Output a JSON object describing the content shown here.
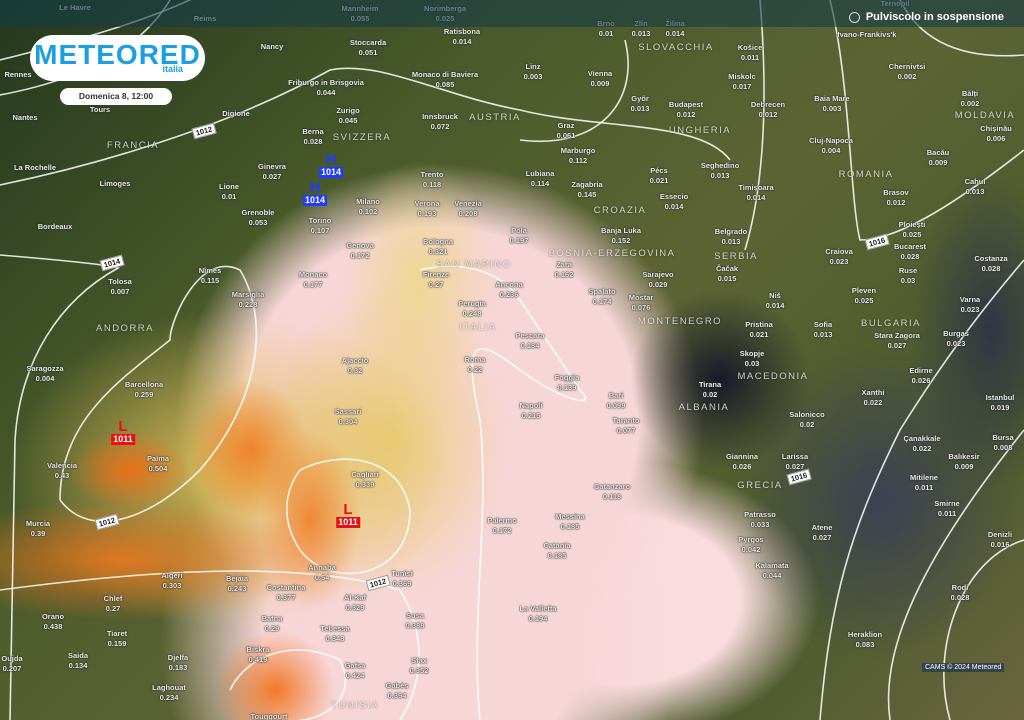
{
  "header": {
    "layer_title": "Pulviscolo in sospensione",
    "layer_icon": "dust-icon"
  },
  "brand": {
    "name": "METEORED",
    "sub": "italia"
  },
  "date_label": "Domenica 8, 12:00",
  "credit": "CAMS © 2024 Meteored",
  "colors": {
    "brand": "#1a9fe0",
    "high": "#1f3cff",
    "low": "#e81010",
    "dust_high": "#f07c1e",
    "dust_mid": "#e8cf78",
    "dust_low": "#f7d6d8"
  },
  "pressure_centers": [
    {
      "type": "H",
      "value": "1014"
    },
    {
      "type": "H",
      "value": "1014"
    },
    {
      "type": "L",
      "value": "1011"
    },
    {
      "type": "L",
      "value": "1011"
    }
  ],
  "isobar_labels": [
    "1012",
    "1014",
    "1012",
    "1012",
    "1016",
    "1016"
  ],
  "countries": [
    "FRANCIA",
    "SVIZZERA",
    "AUSTRIA",
    "SLOVACCHIA",
    "UNGHERIA",
    "ROMANIA",
    "MOLDAVIA",
    "CROAZIA",
    "BOSNIA-ERZEGOVINA",
    "SERBIA",
    "MONTENEGRO",
    "BULGARIA",
    "MACEDONIA",
    "ALBANIA",
    "GRECIA",
    "ITALIA",
    "SAN MARINO",
    "ANDORRA",
    "TUNISIA"
  ],
  "cities": [
    {
      "n": "Le Havre",
      "v": ""
    },
    {
      "n": "Reims",
      "v": ""
    },
    {
      "n": "Mannheim",
      "v": "0.055"
    },
    {
      "n": "Norimberga",
      "v": "0.025"
    },
    {
      "n": "Brno",
      "v": "0.01"
    },
    {
      "n": "Zlín",
      "v": "0.013"
    },
    {
      "n": "Žilina",
      "v": "0.014"
    },
    {
      "n": "Ternopil",
      "v": ""
    },
    {
      "n": "Stoccarda",
      "v": "0.051"
    },
    {
      "n": "Ratisbona",
      "v": "0.014"
    },
    {
      "n": "Nancy",
      "v": ""
    },
    {
      "n": "Rennes",
      "v": ""
    },
    {
      "n": "Friburgo in Brisgovia",
      "v": "0.044"
    },
    {
      "n": "Monaco di Baviera",
      "v": "0.085"
    },
    {
      "n": "Linz",
      "v": "0.003"
    },
    {
      "n": "Vienna",
      "v": "0.009"
    },
    {
      "n": "Košice",
      "v": "0.011"
    },
    {
      "n": "Ivano-Frankivs'k",
      "v": ""
    },
    {
      "n": "Chernivtsi",
      "v": "0.002"
    },
    {
      "n": "Tours",
      "v": ""
    },
    {
      "n": "Nantes",
      "v": ""
    },
    {
      "n": "Digione",
      "v": ""
    },
    {
      "n": "Zurigo",
      "v": "0.045"
    },
    {
      "n": "Innsbruck",
      "v": "0.072"
    },
    {
      "n": "Miskolc",
      "v": "0.017"
    },
    {
      "n": "Győr",
      "v": "0.013"
    },
    {
      "n": "Budapest",
      "v": "0.012"
    },
    {
      "n": "Debrecen",
      "v": "0.012"
    },
    {
      "n": "Baia Mare",
      "v": "0.003"
    },
    {
      "n": "Bălți",
      "v": "0.002"
    },
    {
      "n": "Chișinău",
      "v": "0.006"
    },
    {
      "n": "Berna",
      "v": "0.028"
    },
    {
      "n": "Graz",
      "v": "0.061"
    },
    {
      "n": "Marburgo",
      "v": "0.112"
    },
    {
      "n": "Cluj-Napoca",
      "v": "0.004"
    },
    {
      "n": "Bacău",
      "v": "0.009"
    },
    {
      "n": "La Rochelle",
      "v": ""
    },
    {
      "n": "Ginevra",
      "v": "0.027"
    },
    {
      "n": "Lione",
      "v": "0.01"
    },
    {
      "n": "Limoges",
      "v": ""
    },
    {
      "n": "Trento",
      "v": "0.118"
    },
    {
      "n": "Lubiana",
      "v": "0.114"
    },
    {
      "n": "Zagabria",
      "v": "0.145"
    },
    {
      "n": "Pécs",
      "v": "0.021"
    },
    {
      "n": "Seghedino",
      "v": "0.013"
    },
    {
      "n": "Timișoara",
      "v": "0.014"
    },
    {
      "n": "Brasov",
      "v": "0.012"
    },
    {
      "n": "Cahul",
      "v": "0.013"
    },
    {
      "n": "Essecio",
      "v": "0.014"
    },
    {
      "n": "Milano",
      "v": "0.102"
    },
    {
      "n": "Verona",
      "v": "0.193"
    },
    {
      "n": "Venezia",
      "v": "0.208"
    },
    {
      "n": "Bordeaux",
      "v": ""
    },
    {
      "n": "Grenoble",
      "v": "0.053"
    },
    {
      "n": "Torino",
      "v": "0.107"
    },
    {
      "n": "Pola",
      "v": "0.197"
    },
    {
      "n": "Banja Luka",
      "v": "0.152"
    },
    {
      "n": "Belgrado",
      "v": "0.013"
    },
    {
      "n": "Ploiești",
      "v": "0.025"
    },
    {
      "n": "Craiova",
      "v": "0.023"
    },
    {
      "n": "Bucarest",
      "v": "0.028"
    },
    {
      "n": "Costanza",
      "v": "0.028"
    },
    {
      "n": "Genova",
      "v": "0.172"
    },
    {
      "n": "Bologna",
      "v": "0.321"
    },
    {
      "n": "Firenze",
      "v": "0.27"
    },
    {
      "n": "Ancona",
      "v": "0.236"
    },
    {
      "n": "Zara",
      "v": "0.162"
    },
    {
      "n": "Sarajevo",
      "v": "0.029"
    },
    {
      "n": "Čačak",
      "v": "0.015"
    },
    {
      "n": "Ruse",
      "v": "0.03"
    },
    {
      "n": "Tolosa",
      "v": "0.007"
    },
    {
      "n": "Nîmes",
      "v": "0.115"
    },
    {
      "n": "Monaco",
      "v": "0.177"
    },
    {
      "n": "Marsiglia",
      "v": "0.228"
    },
    {
      "n": "Spalato",
      "v": "0.174"
    },
    {
      "n": "Mostar",
      "v": "0.076"
    },
    {
      "n": "Perugia",
      "v": "0.248"
    },
    {
      "n": "Niš",
      "v": "0.014"
    },
    {
      "n": "Pleven",
      "v": "0.025"
    },
    {
      "n": "Varna",
      "v": "0.023"
    },
    {
      "n": "Pristina",
      "v": "0.021"
    },
    {
      "n": "Sofia",
      "v": "0.013"
    },
    {
      "n": "Stara Zagora",
      "v": "0.027"
    },
    {
      "n": "Burgas",
      "v": "0.023"
    },
    {
      "n": "Pescara",
      "v": "0.184"
    },
    {
      "n": "Saragozza",
      "v": "0.004"
    },
    {
      "n": "Ajaccio",
      "v": "0.32"
    },
    {
      "n": "Roma",
      "v": "0.22"
    },
    {
      "n": "Skopje",
      "v": "0.03"
    },
    {
      "n": "Foggia",
      "v": "0.139"
    },
    {
      "n": "Bari",
      "v": "0.099"
    },
    {
      "n": "Tirana",
      "v": "0.02"
    },
    {
      "n": "Barcellona",
      "v": "0.259"
    },
    {
      "n": "Edirne",
      "v": "0.026"
    },
    {
      "n": "Xanthi",
      "v": "0.022"
    },
    {
      "n": "Istanbul",
      "v": "0.019"
    },
    {
      "n": "Napoli",
      "v": "0.215"
    },
    {
      "n": "Taranto",
      "v": "0.077"
    },
    {
      "n": "Salonicco",
      "v": "0.02"
    },
    {
      "n": "Sassari",
      "v": "0.304"
    },
    {
      "n": "Çanakkale",
      "v": "0.022"
    },
    {
      "n": "Bursa",
      "v": "0.008"
    },
    {
      "n": "Giannina",
      "v": "0.026"
    },
    {
      "n": "Larissa",
      "v": "0.027"
    },
    {
      "n": "Balıkesir",
      "v": "0.009"
    },
    {
      "n": "Palma",
      "v": "0.504"
    },
    {
      "n": "Valencia",
      "v": "0.43"
    },
    {
      "n": "Cagliari",
      "v": "0.339"
    },
    {
      "n": "Mitilene",
      "v": "0.011"
    },
    {
      "n": "Catanzaro",
      "v": "0.118"
    },
    {
      "n": "Smirne",
      "v": "0.011"
    },
    {
      "n": "Patrasso",
      "v": "0.033"
    },
    {
      "n": "Denizli",
      "v": "0.016"
    },
    {
      "n": "Murcia",
      "v": "0.39"
    },
    {
      "n": "Palermo",
      "v": "0.172"
    },
    {
      "n": "Messina",
      "v": "0.185"
    },
    {
      "n": "Atene",
      "v": "0.027"
    },
    {
      "n": "Pyrgos",
      "v": "0.042"
    },
    {
      "n": "Catania",
      "v": "0.185"
    },
    {
      "n": "Kalamata",
      "v": "0.044"
    },
    {
      "n": "Annaba",
      "v": "0.54"
    },
    {
      "n": "Tunisi",
      "v": "0.369"
    },
    {
      "n": "Algeri",
      "v": "0.303"
    },
    {
      "n": "Bejaia",
      "v": "0.243"
    },
    {
      "n": "Costantina",
      "v": "0.377"
    },
    {
      "n": "Chlef",
      "v": "0.27"
    },
    {
      "n": "Rodi",
      "v": "0.028"
    },
    {
      "n": "Al-Kaf",
      "v": "0.329"
    },
    {
      "n": "Orano",
      "v": "0.438"
    },
    {
      "n": "Susa",
      "v": "0.388"
    },
    {
      "n": "La Valletta",
      "v": "0.194"
    },
    {
      "n": "Heraklion",
      "v": "0.083"
    },
    {
      "n": "Batna",
      "v": "0.29"
    },
    {
      "n": "Tebessa",
      "v": "0.348"
    },
    {
      "n": "Tiaret",
      "v": "0.159"
    },
    {
      "n": "Biskra",
      "v": "0.419"
    },
    {
      "n": "Saida",
      "v": "0.134"
    },
    {
      "n": "Djelfa",
      "v": "0.183"
    },
    {
      "n": "Oujda",
      "v": "0.207"
    },
    {
      "n": "Sfax",
      "v": "0.352"
    },
    {
      "n": "Gafsa",
      "v": "0.424"
    },
    {
      "n": "Laghouat",
      "v": "0.234"
    },
    {
      "n": "Gabès",
      "v": "0.394"
    },
    {
      "n": "Touggourt",
      "v": ""
    }
  ]
}
